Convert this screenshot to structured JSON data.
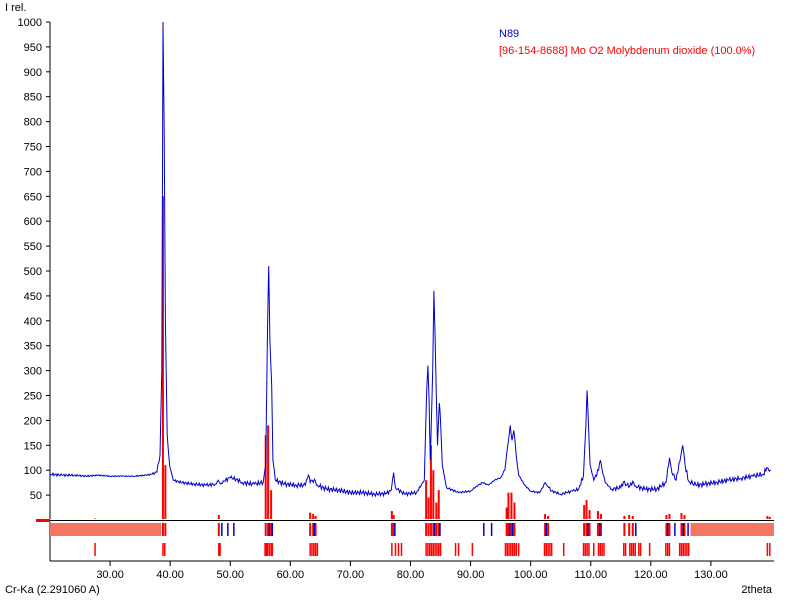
{
  "chart_data": {
    "type": "line",
    "ylabel": "I rel.",
    "xlabel": "2theta",
    "radiation_label": "Cr-Ka (2.291060 A)",
    "xlim": [
      20,
      140
    ],
    "ylim": [
      0,
      1000
    ],
    "y_ticks": [
      50,
      100,
      150,
      200,
      250,
      300,
      350,
      400,
      450,
      500,
      550,
      600,
      650,
      700,
      750,
      800,
      850,
      900,
      950,
      1000
    ],
    "x_ticks": [
      30,
      40,
      50,
      60,
      70,
      80,
      90,
      100,
      110,
      120,
      130
    ],
    "x_tick_labels": [
      "30.00",
      "40.00",
      "50.00",
      "60.00",
      "70.00",
      "80.00",
      "90.00",
      "100.00",
      "110.00",
      "120.00",
      "130.00"
    ],
    "legend_placement": "top-right",
    "grid": false,
    "colors": {
      "measured": "#0000cc",
      "reference": "#ff0000",
      "band": "#f47560"
    },
    "series": [
      {
        "name": "N89",
        "color": "#0000cc",
        "points": [
          [
            20,
            92
          ],
          [
            22,
            90
          ],
          [
            24,
            90
          ],
          [
            26,
            88
          ],
          [
            28,
            90
          ],
          [
            30,
            88
          ],
          [
            32,
            88
          ],
          [
            34,
            88
          ],
          [
            36,
            90
          ],
          [
            37,
            92
          ],
          [
            37.8,
            96
          ],
          [
            38.3,
            130
          ],
          [
            38.6,
            300
          ],
          [
            38.8,
            1000
          ],
          [
            39,
            780
          ],
          [
            39.2,
            400
          ],
          [
            39.5,
            170
          ],
          [
            39.9,
            110
          ],
          [
            40.5,
            80
          ],
          [
            42,
            75
          ],
          [
            44,
            72
          ],
          [
            46,
            70
          ],
          [
            47.5,
            72
          ],
          [
            48,
            80
          ],
          [
            48.4,
            72
          ],
          [
            49,
            78
          ],
          [
            50,
            85
          ],
          [
            51,
            82
          ],
          [
            52,
            75
          ],
          [
            54,
            72
          ],
          [
            55.5,
            76
          ],
          [
            55.9,
            110
          ],
          [
            56.2,
            380
          ],
          [
            56.4,
            510
          ],
          [
            56.6,
            360
          ],
          [
            56.9,
            270
          ],
          [
            57.1,
            120
          ],
          [
            57.5,
            80
          ],
          [
            59,
            72
          ],
          [
            61,
            70
          ],
          [
            62.5,
            70
          ],
          [
            63,
            90
          ],
          [
            63.3,
            75
          ],
          [
            64,
            82
          ],
          [
            64.5,
            70
          ],
          [
            66,
            62
          ],
          [
            68,
            60
          ],
          [
            70,
            55
          ],
          [
            72,
            55
          ],
          [
            74,
            52
          ],
          [
            76,
            53
          ],
          [
            76.8,
            60
          ],
          [
            77.2,
            95
          ],
          [
            77.5,
            65
          ],
          [
            79,
            52
          ],
          [
            81,
            55
          ],
          [
            82.3,
            80
          ],
          [
            82.7,
            260
          ],
          [
            82.9,
            310
          ],
          [
            83.1,
            240
          ],
          [
            83.3,
            120
          ],
          [
            83.7,
            300
          ],
          [
            83.9,
            460
          ],
          [
            84.1,
            370
          ],
          [
            84.3,
            250
          ],
          [
            84.5,
            150
          ],
          [
            84.8,
            235
          ],
          [
            85,
            200
          ],
          [
            85.3,
            110
          ],
          [
            86,
            65
          ],
          [
            88,
            55
          ],
          [
            90,
            58
          ],
          [
            91,
            68
          ],
          [
            92,
            75
          ],
          [
            93,
            70
          ],
          [
            94,
            80
          ],
          [
            95,
            85
          ],
          [
            95.7,
            100
          ],
          [
            96.2,
            150
          ],
          [
            96.6,
            190
          ],
          [
            96.9,
            160
          ],
          [
            97.2,
            180
          ],
          [
            97.6,
            130
          ],
          [
            98,
            90
          ],
          [
            99,
            70
          ],
          [
            100,
            58
          ],
          [
            101.5,
            55
          ],
          [
            102.4,
            75
          ],
          [
            102.8,
            68
          ],
          [
            103.5,
            58
          ],
          [
            105,
            52
          ],
          [
            106,
            55
          ],
          [
            107,
            58
          ],
          [
            108,
            62
          ],
          [
            108.8,
            90
          ],
          [
            109.2,
            190
          ],
          [
            109.4,
            260
          ],
          [
            109.6,
            200
          ],
          [
            109.9,
            110
          ],
          [
            110.5,
            80
          ],
          [
            111.3,
            100
          ],
          [
            111.6,
            120
          ],
          [
            111.9,
            100
          ],
          [
            112.4,
            75
          ],
          [
            113.5,
            62
          ],
          [
            115,
            65
          ],
          [
            115.6,
            78
          ],
          [
            116,
            70
          ],
          [
            116.5,
            68
          ],
          [
            117,
            78
          ],
          [
            117.5,
            68
          ],
          [
            119,
            62
          ],
          [
            121,
            62
          ],
          [
            122.5,
            75
          ],
          [
            123.1,
            125
          ],
          [
            123.5,
            95
          ],
          [
            124.2,
            80
          ],
          [
            125,
            130
          ],
          [
            125.3,
            150
          ],
          [
            125.7,
            110
          ],
          [
            126.3,
            78
          ],
          [
            127.5,
            70
          ],
          [
            129,
            72
          ],
          [
            131,
            76
          ],
          [
            133,
            80
          ],
          [
            135,
            84
          ],
          [
            137,
            88
          ],
          [
            138.7,
            92
          ],
          [
            139.3,
            105
          ],
          [
            139.7,
            98
          ],
          [
            140,
            100
          ]
        ]
      },
      {
        "name": "[96-154-8688] Mo O2 Molybdenum dioxide (100.0%)",
        "color": "#ff0000",
        "stick_positions": [
          27.5,
          38.8,
          39.2,
          48.1,
          55.9,
          56.3,
          56.8,
          63.3,
          63.8,
          64.2,
          76.9,
          77.2,
          82.6,
          83,
          83.4,
          83.8,
          84.3,
          84.7,
          96,
          96.3,
          96.8,
          97.3,
          102.4,
          102.9,
          108.9,
          109.3,
          109.8,
          111.2,
          111.7,
          115.6,
          116.4,
          117,
          122.6,
          123.1,
          125.1,
          125.6,
          139.4,
          139.8
        ],
        "stick_heights": [
          3,
          650,
          110,
          10,
          170,
          190,
          60,
          15,
          12,
          8,
          18,
          10,
          80,
          45,
          150,
          100,
          35,
          60,
          25,
          55,
          55,
          35,
          12,
          8,
          30,
          40,
          20,
          18,
          12,
          8,
          10,
          8,
          10,
          12,
          14,
          10,
          8,
          6
        ]
      }
    ]
  }
}
